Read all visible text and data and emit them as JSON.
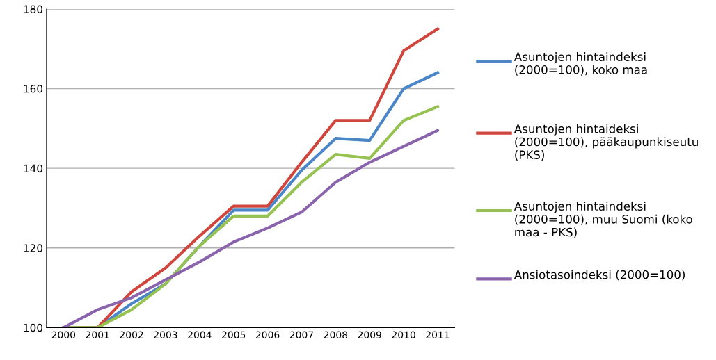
{
  "chart_data": {
    "type": "line",
    "categories": [
      "2000",
      "2001",
      "2002",
      "2003",
      "2004",
      "2005",
      "2006",
      "2007",
      "2008",
      "2009",
      "2010",
      "2011"
    ],
    "series": [
      {
        "name": "Asuntojen hintaindeksi (2000=100), koko maa",
        "color": "#4a86c8",
        "values": [
          100,
          100,
          106,
          111,
          120.5,
          129.5,
          129.5,
          139.5,
          147.5,
          147,
          160,
          164
        ]
      },
      {
        "name": "Asuntojen hintaideksi (2000=100), pääkaupunkiseutu (PKS)",
        "color": "#d0463c",
        "values": [
          100,
          100,
          109,
          115,
          123,
          130.5,
          130.5,
          141.5,
          152,
          152,
          169.5,
          175
        ]
      },
      {
        "name": "Asuntojen hintaindeksi (2000=100), muu Suomi (koko maa - PKS)",
        "color": "#96c251",
        "values": [
          100,
          100,
          104.5,
          111,
          120.5,
          128,
          128,
          136.5,
          143.5,
          142.5,
          152,
          155.5
        ]
      },
      {
        "name": "Ansiotasoindeksi (2000=100)",
        "color": "#8a63ad",
        "values": [
          100,
          104.5,
          107.5,
          112,
          116.5,
          121.5,
          125,
          129,
          136.5,
          141.5,
          145.5,
          149.5
        ]
      }
    ],
    "ylim": [
      100,
      180
    ],
    "yticks": [
      100,
      120,
      140,
      160,
      180
    ],
    "grid": "y",
    "legend": "right",
    "marker": "none",
    "line_style": "solid"
  }
}
